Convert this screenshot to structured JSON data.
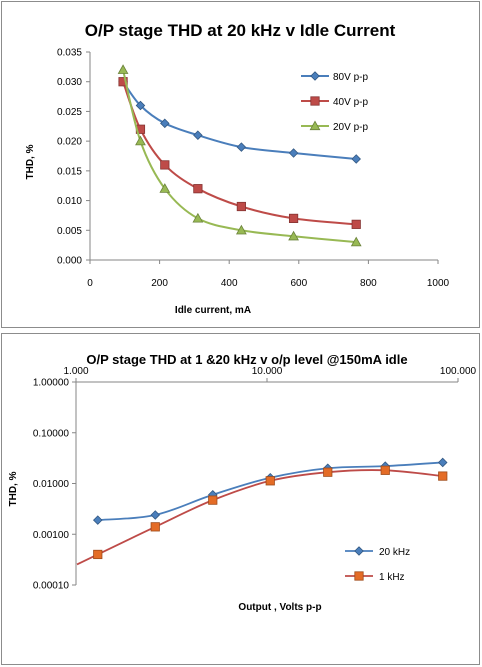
{
  "chart_data": [
    {
      "type": "line",
      "title": "O/P stage THD at 20 kHz v Idle Current",
      "xlabel": "Idle current, mA",
      "ylabel": "THD, %",
      "xlim": [
        0,
        1000
      ],
      "ylim": [
        0,
        0.035
      ],
      "xticks": [
        "0",
        "200",
        "400",
        "600",
        "800",
        "1000"
      ],
      "yticks": [
        "0.000",
        "0.005",
        "0.010",
        "0.015",
        "0.020",
        "0.025",
        "0.030",
        "0.035"
      ],
      "legend_position": "top-right",
      "grid": false,
      "series": [
        {
          "name": "80V p-p",
          "marker": "diamond",
          "color": "#4a7ebb",
          "x": [
            95,
            145,
            215,
            310,
            435,
            585,
            765
          ],
          "y": [
            0.03,
            0.026,
            0.023,
            0.021,
            0.019,
            0.018,
            0.017
          ]
        },
        {
          "name": "40V p-p",
          "marker": "square",
          "color": "#be4b48",
          "x": [
            95,
            145,
            215,
            310,
            435,
            585,
            765
          ],
          "y": [
            0.03,
            0.022,
            0.016,
            0.012,
            0.009,
            0.007,
            0.006
          ]
        },
        {
          "name": "20V p-p",
          "marker": "triangle",
          "color": "#98b954",
          "x": [
            95,
            145,
            215,
            310,
            435,
            585,
            765
          ],
          "y": [
            0.032,
            0.02,
            0.012,
            0.007,
            0.005,
            0.004,
            0.003
          ]
        }
      ]
    },
    {
      "type": "line",
      "title": "O/P stage THD at 1 &20 kHz v o/p level @150mA idle",
      "xlabel": "Output , Volts p-p",
      "ylabel": "THD, %",
      "xscale": "log",
      "yscale": "log",
      "xlim": [
        1,
        100
      ],
      "ylim": [
        0.0001,
        1
      ],
      "xticks": [
        "1.000",
        "10.000",
        "100.000"
      ],
      "yticks": [
        "0.00010",
        "0.00100",
        "0.01000",
        "0.10000",
        "1.00000"
      ],
      "legend_position": "bottom-right",
      "grid": false,
      "series": [
        {
          "name": "20 kHz",
          "marker": "diamond",
          "color": "#4a7ebb",
          "x": [
            1.3,
            2.6,
            5.2,
            10.4,
            20.8,
            41.6,
            83.2
          ],
          "y": [
            0.0019,
            0.0024,
            0.006,
            0.013,
            0.02,
            0.022,
            0.026
          ]
        },
        {
          "name": "1 kHz",
          "marker": "square",
          "color": "#e46c26",
          "x": [
            1.3,
            2.6,
            5.2,
            10.4,
            20.8,
            41.6,
            83.2
          ],
          "y": [
            0.0004,
            0.0014,
            0.0047,
            0.0113,
            0.0167,
            0.0182,
            0.014
          ]
        }
      ]
    }
  ]
}
